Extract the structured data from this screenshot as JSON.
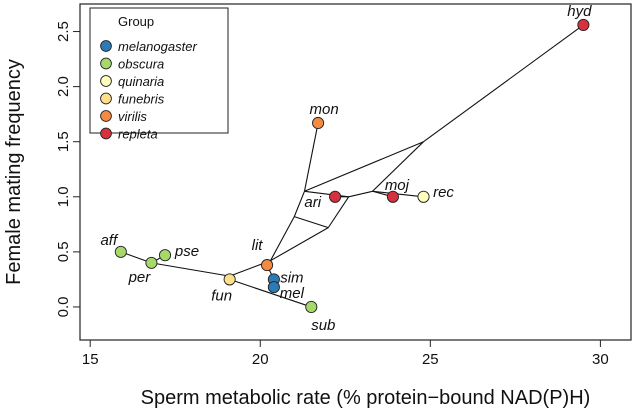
{
  "chart_data": {
    "type": "scatter",
    "xlabel": "Sperm metabolic rate (% protein−bound NAD(P)H)",
    "ylabel": "Female mating frequency",
    "xlim": [
      14.7,
      30.9
    ],
    "ylim": [
      -0.3,
      2.75
    ],
    "x_ticks": [
      15,
      20,
      25,
      30
    ],
    "y_ticks": [
      0.0,
      0.5,
      1.0,
      1.5,
      2.0,
      2.5
    ],
    "x_tick_labels": [
      "15",
      "20",
      "25",
      "30"
    ],
    "y_tick_labels": [
      "0.0",
      "0.5",
      "1.0",
      "1.5",
      "2.0",
      "2.5"
    ],
    "grid": false,
    "legend": {
      "title": "Group",
      "position": "top-left",
      "entries": [
        {
          "name": "melanogaster",
          "color": "#2C7BB6"
        },
        {
          "name": "obscura",
          "color": "#A6D96A"
        },
        {
          "name": "quinaria",
          "color": "#FFFFBF"
        },
        {
          "name": "funebris",
          "color": "#FEE08B"
        },
        {
          "name": "virilis",
          "color": "#F58A42"
        },
        {
          "name": "repleta",
          "color": "#D7303F"
        }
      ]
    },
    "points": [
      {
        "label": "hyd",
        "group": "repleta",
        "x": 29.5,
        "y": 2.56
      },
      {
        "label": "mon",
        "group": "virilis",
        "x": 21.7,
        "y": 1.67
      },
      {
        "label": "ari",
        "group": "repleta",
        "x": 22.2,
        "y": 1.0
      },
      {
        "label": "moj",
        "group": "repleta",
        "x": 23.9,
        "y": 1.0
      },
      {
        "label": "rec",
        "group": "quinaria",
        "x": 24.8,
        "y": 1.0
      },
      {
        "label": "lit",
        "group": "virilis",
        "x": 20.2,
        "y": 0.38
      },
      {
        "label": "aff",
        "group": "obscura",
        "x": 15.9,
        "y": 0.5
      },
      {
        "label": "pse",
        "group": "obscura",
        "x": 17.2,
        "y": 0.47
      },
      {
        "label": "per",
        "group": "obscura",
        "x": 16.8,
        "y": 0.4
      },
      {
        "label": "fun",
        "group": "funebris",
        "x": 19.1,
        "y": 0.25
      },
      {
        "label": "sim",
        "group": "melanogaster",
        "x": 20.4,
        "y": 0.25
      },
      {
        "label": "mel",
        "group": "melanogaster",
        "x": 20.4,
        "y": 0.18
      },
      {
        "label": "sub",
        "group": "obscura",
        "x": 21.5,
        "y": 0.0
      }
    ],
    "tree_edges": [
      [
        [
          29.5,
          2.56
        ],
        [
          24.8,
          1.5
        ]
      ],
      [
        [
          24.8,
          1.5
        ],
        [
          23.3,
          1.05
        ]
      ],
      [
        [
          24.8,
          1.5
        ],
        [
          21.3,
          1.05
        ]
      ],
      [
        [
          24.8,
          1.0
        ],
        [
          23.3,
          1.05
        ]
      ],
      [
        [
          23.3,
          1.05
        ],
        [
          23.9,
          1.0
        ]
      ],
      [
        [
          23.3,
          1.05
        ],
        [
          22.6,
          1.0
        ]
      ],
      [
        [
          22.6,
          1.0
        ],
        [
          21.3,
          1.05
        ]
      ],
      [
        [
          22.6,
          1.0
        ],
        [
          22.2,
          1.0
        ]
      ],
      [
        [
          22.6,
          1.0
        ],
        [
          22.0,
          0.72
        ]
      ],
      [
        [
          21.3,
          1.05
        ],
        [
          21.0,
          0.82
        ]
      ],
      [
        [
          21.7,
          1.67
        ],
        [
          21.3,
          1.05
        ]
      ],
      [
        [
          21.0,
          0.82
        ],
        [
          22.0,
          0.72
        ]
      ],
      [
        [
          21.0,
          0.82
        ],
        [
          20.3,
          0.42
        ]
      ],
      [
        [
          22.0,
          0.72
        ],
        [
          20.3,
          0.42
        ]
      ],
      [
        [
          20.3,
          0.42
        ],
        [
          20.2,
          0.38
        ]
      ],
      [
        [
          20.3,
          0.42
        ],
        [
          19.1,
          0.28
        ]
      ],
      [
        [
          20.2,
          0.38
        ],
        [
          20.4,
          0.25
        ]
      ],
      [
        [
          20.4,
          0.25
        ],
        [
          20.4,
          0.18
        ]
      ],
      [
        [
          19.1,
          0.28
        ],
        [
          19.1,
          0.25
        ]
      ],
      [
        [
          19.1,
          0.28
        ],
        [
          16.8,
          0.4
        ]
      ],
      [
        [
          16.8,
          0.4
        ],
        [
          15.9,
          0.5
        ]
      ],
      [
        [
          16.8,
          0.4
        ],
        [
          17.2,
          0.47
        ]
      ],
      [
        [
          19.1,
          0.25
        ],
        [
          21.5,
          0.0
        ]
      ]
    ]
  }
}
